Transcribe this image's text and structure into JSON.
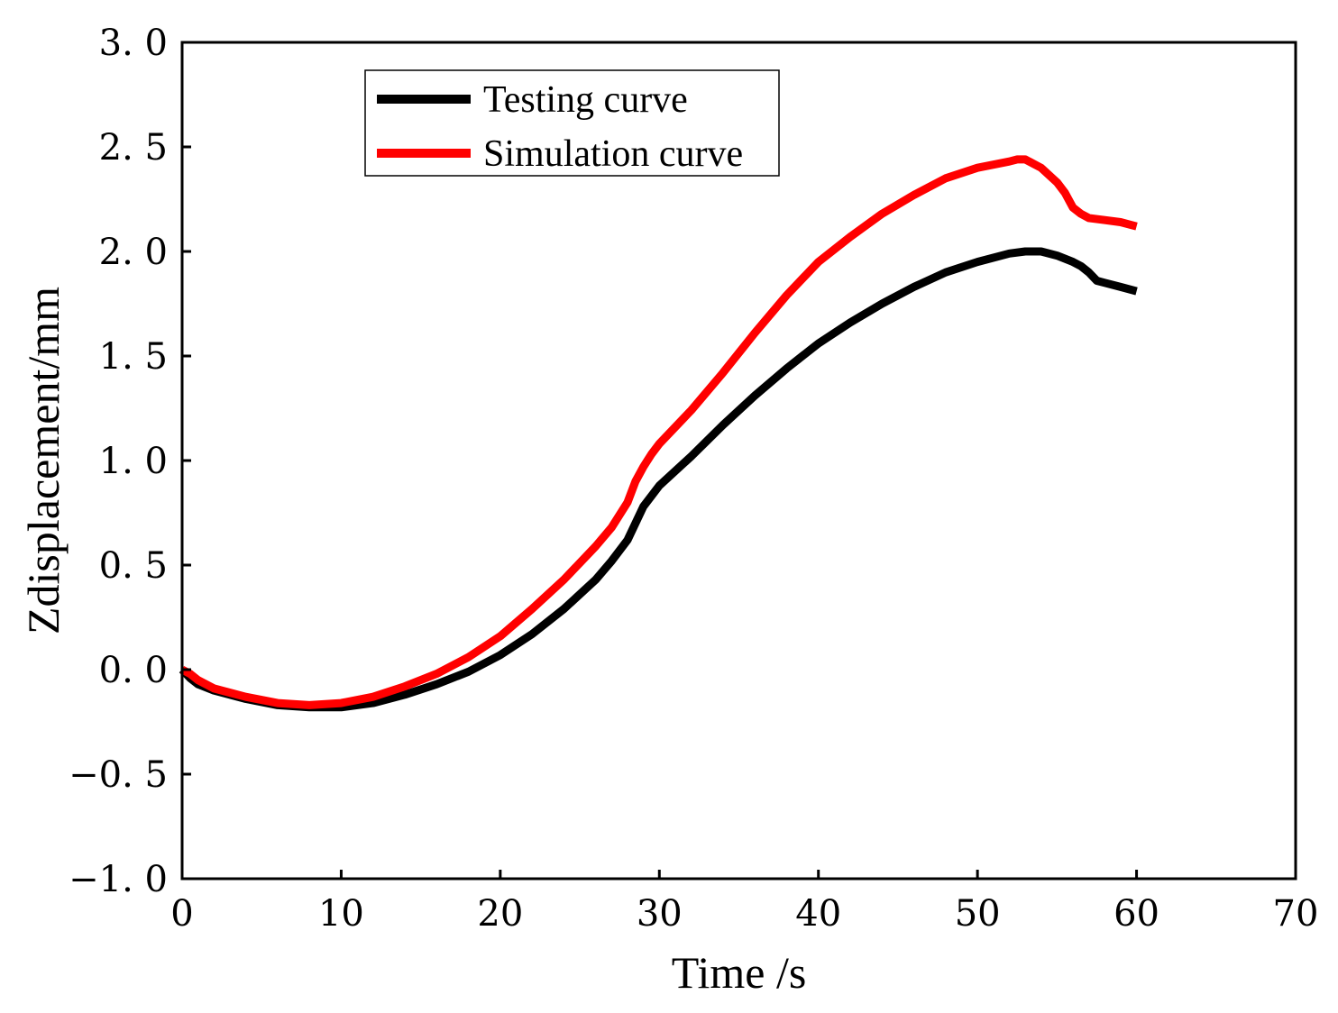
{
  "chart_data": {
    "type": "line",
    "title": "",
    "xlabel": "Time /s",
    "ylabel": "Zdisplacement/mm",
    "xlim": [
      0,
      70
    ],
    "ylim": [
      -1.0,
      3.0
    ],
    "xticks": [
      0,
      10,
      20,
      30,
      40,
      50,
      60,
      70
    ],
    "xtick_labels": [
      "0",
      "10",
      "20",
      "30",
      "40",
      "50",
      "60",
      "70"
    ],
    "yticks": [
      -1.0,
      -0.5,
      0.0,
      0.5,
      1.0,
      1.5,
      2.0,
      2.5,
      3.0
    ],
    "ytick_labels": [
      "−1. 0",
      "−0. 5",
      "0. 0",
      "0. 5",
      "1. 0",
      "1. 5",
      "2. 0",
      "2. 5",
      "3. 0"
    ],
    "grid": false,
    "legend_position": "top-left",
    "series": [
      {
        "name": "Testing curve",
        "color": "#000000",
        "x": [
          0,
          0.5,
          1,
          2,
          4,
          6,
          8,
          10,
          12,
          14,
          16,
          18,
          20,
          22,
          24,
          26,
          27,
          28,
          29,
          30,
          32,
          34,
          36,
          38,
          40,
          42,
          44,
          46,
          48,
          50,
          52,
          53,
          54,
          55,
          56,
          56.5,
          57,
          57.5,
          58,
          59,
          60
        ],
        "y": [
          0.0,
          -0.04,
          -0.07,
          -0.1,
          -0.14,
          -0.17,
          -0.18,
          -0.18,
          -0.16,
          -0.12,
          -0.07,
          -0.01,
          0.07,
          0.17,
          0.29,
          0.43,
          0.52,
          0.62,
          0.78,
          0.88,
          1.02,
          1.17,
          1.31,
          1.44,
          1.56,
          1.66,
          1.75,
          1.83,
          1.9,
          1.95,
          1.99,
          2.0,
          2.0,
          1.98,
          1.95,
          1.93,
          1.9,
          1.86,
          1.85,
          1.83,
          1.81
        ]
      },
      {
        "name": "Simulation curve",
        "color": "#ff0000",
        "x": [
          0,
          0.5,
          1,
          2,
          4,
          6,
          8,
          10,
          12,
          14,
          16,
          18,
          20,
          22,
          24,
          26,
          27,
          28,
          28.5,
          29,
          29.5,
          30,
          32,
          34,
          36,
          38,
          40,
          42,
          44,
          46,
          48,
          50,
          52,
          52.5,
          53,
          54,
          55,
          55.5,
          56,
          56.5,
          57,
          58,
          59,
          60
        ],
        "y": [
          0.0,
          -0.02,
          -0.05,
          -0.09,
          -0.13,
          -0.16,
          -0.17,
          -0.16,
          -0.13,
          -0.08,
          -0.02,
          0.06,
          0.16,
          0.29,
          0.43,
          0.59,
          0.68,
          0.8,
          0.9,
          0.97,
          1.03,
          1.08,
          1.24,
          1.42,
          1.61,
          1.79,
          1.95,
          2.07,
          2.18,
          2.27,
          2.35,
          2.4,
          2.43,
          2.44,
          2.44,
          2.4,
          2.33,
          2.28,
          2.21,
          2.18,
          2.16,
          2.15,
          2.14,
          2.12
        ]
      }
    ]
  }
}
